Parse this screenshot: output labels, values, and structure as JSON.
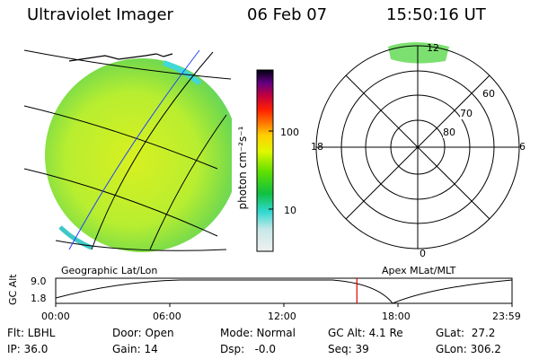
{
  "header": {
    "title": "Ultraviolet Imager",
    "date": "06 Feb 07",
    "time": "15:50:16 UT"
  },
  "geo_panel": {
    "label": "Geographic Lat/Lon"
  },
  "polar_panel": {
    "label": "Apex MLat/MLT",
    "mlt_labels": {
      "top": "12",
      "bottom": "0",
      "left": "18",
      "right": "6"
    },
    "lat_labels": [
      "60",
      "70",
      "80"
    ]
  },
  "colorbar": {
    "unit_label": "photon cm⁻²s⁻¹",
    "ticks": [
      "100",
      "10"
    ],
    "colors": [
      "#e8e8e8",
      "#40e0d0",
      "#00c000",
      "#c0ff00",
      "#ffff00",
      "#ff8000",
      "#ff0000",
      "#c00040",
      "#800080",
      "#000000"
    ]
  },
  "altitude_plot": {
    "ylabel": "GC Alt",
    "yticks": [
      "9.0",
      "1.8"
    ],
    "xticks": [
      "00:00",
      "06:00",
      "12:00",
      "18:00",
      "23:59"
    ],
    "current_marker_hours": 15.84
  },
  "info": {
    "row1": {
      "flt": "Flt: LBHL",
      "door": "Door: Open",
      "mode": "Mode: Normal",
      "gcalt": "GC Alt: 4.1 Re",
      "glat": "GLat:  27.2"
    },
    "row2": {
      "ip": "IP: 36.0",
      "gain": "Gain: 14",
      "dsp": "Dsp:   -0.0",
      "seq": "Seq: 39",
      "glon": "GLon: 306.2"
    }
  }
}
